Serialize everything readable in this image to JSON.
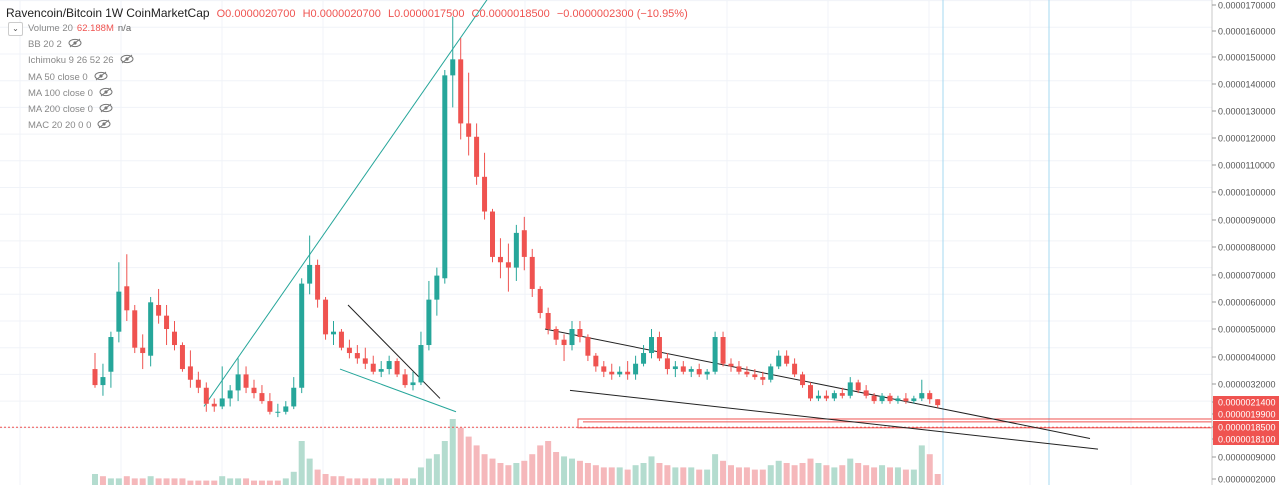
{
  "header": {
    "symbol": "Ravencoin/Bitcoin",
    "interval": "1W",
    "source": "CoinMarketCap",
    "open": "O0.0000020700",
    "high": "H0.0000020700",
    "low": "L0.0000017500",
    "close": "C0.0000018500",
    "change": "−0.0000002300 (−10.95%)"
  },
  "indicators": [
    {
      "label": "Volume 20",
      "value": "62.188M",
      "extra": "n/a",
      "icon": "collapse-chevron-icon"
    },
    {
      "label": "BB 20 2",
      "icon": "eye-hidden-icon"
    },
    {
      "label": "Ichimoku 9 26 52 26",
      "icon": "eye-hidden-icon"
    },
    {
      "label": "MA 50 close 0",
      "icon": "eye-hidden-icon"
    },
    {
      "label": "MA 100 close 0",
      "icon": "eye-hidden-icon"
    },
    {
      "label": "MA 200 close 0",
      "icon": "eye-hidden-icon"
    },
    {
      "label": "MAC 20 20 0 0",
      "icon": "eye-hidden-icon"
    }
  ],
  "colors": {
    "up": "#26a69a",
    "down": "#ef5350",
    "vol_up": "#b4dccf",
    "vol_down": "#f5b8bb",
    "trendline_up": "#26a69a",
    "trendline_down": "#222222",
    "vline": "#a6d8f0",
    "grid": "#f0f3f8",
    "hline": "#ef5350"
  },
  "chart_data": {
    "type": "candlestick",
    "title": "Ravencoin/Bitcoin · 1W · CoinMarketCap",
    "y_axis": {
      "ylim": [
        0.0,
        1.7e-05
      ],
      "tick_labels": [
        "0.0000170000",
        "0.0000160000",
        "0.0000150000",
        "0.0000140000",
        "0.0000130000",
        "0.0000120000",
        "0.0000110000",
        "0.0000100000",
        "0.0000090000",
        "0.0000080000",
        "0.0000070000",
        "0.0000060000",
        "0.0000050000",
        "0.0000040000",
        "0.0000032000",
        "0.0000021400",
        "0.0000019900",
        "0.0000018500",
        "0.0000018100",
        "0.0000009000",
        "0.0000002000"
      ],
      "highlighted_labels": [
        "0.0000021400",
        "0.0000019900",
        "0.0000018500",
        "0.0000018100"
      ]
    },
    "grid": true,
    "candles": [
      [
        3.2,
        3.8,
        2.5,
        2.6
      ],
      [
        2.6,
        3.4,
        2.2,
        2.9
      ],
      [
        3.1,
        4.6,
        2.5,
        4.4
      ],
      [
        4.6,
        7.2,
        4.2,
        6.1
      ],
      [
        6.3,
        7.5,
        5.0,
        5.4
      ],
      [
        5.4,
        5.6,
        3.8,
        4.0
      ],
      [
        4.0,
        4.5,
        3.2,
        3.8
      ],
      [
        3.7,
        5.9,
        3.3,
        5.7
      ],
      [
        5.6,
        6.2,
        4.9,
        5.2
      ],
      [
        5.2,
        5.6,
        4.1,
        4.7
      ],
      [
        4.6,
        5.0,
        3.9,
        4.1
      ],
      [
        4.1,
        4.2,
        3.1,
        3.2
      ],
      [
        3.3,
        3.9,
        2.5,
        2.8
      ],
      [
        2.8,
        3.1,
        2.3,
        2.5
      ],
      [
        2.5,
        2.7,
        1.6,
        1.9
      ],
      [
        1.9,
        2.1,
        1.6,
        1.8
      ],
      [
        1.8,
        3.3,
        1.7,
        2.1
      ],
      [
        2.1,
        2.6,
        1.8,
        2.4
      ],
      [
        2.4,
        3.6,
        2.0,
        3.0
      ],
      [
        3.0,
        3.3,
        2.3,
        2.5
      ],
      [
        2.5,
        2.8,
        2.1,
        2.3
      ],
      [
        2.3,
        2.6,
        1.9,
        2.0
      ],
      [
        2.0,
        2.3,
        1.5,
        1.6
      ],
      [
        1.6,
        1.9,
        1.4,
        1.6
      ],
      [
        1.6,
        2.0,
        1.5,
        1.8
      ],
      [
        1.8,
        2.9,
        1.7,
        2.5
      ],
      [
        2.5,
        6.6,
        2.3,
        6.4
      ],
      [
        6.4,
        8.2,
        6.0,
        7.1
      ],
      [
        7.1,
        7.3,
        5.5,
        5.8
      ],
      [
        5.8,
        5.9,
        4.3,
        4.5
      ],
      [
        4.5,
        5.0,
        4.1,
        4.6
      ],
      [
        4.6,
        4.7,
        3.9,
        4.0
      ],
      [
        4.0,
        4.3,
        3.6,
        3.8
      ],
      [
        3.8,
        4.1,
        3.4,
        3.6
      ],
      [
        3.6,
        4.0,
        3.2,
        3.4
      ],
      [
        3.4,
        3.7,
        3.0,
        3.1
      ],
      [
        3.1,
        3.5,
        2.9,
        3.2
      ],
      [
        3.2,
        3.7,
        3.0,
        3.5
      ],
      [
        3.5,
        3.6,
        2.9,
        3.0
      ],
      [
        3.0,
        3.2,
        2.5,
        2.6
      ],
      [
        2.6,
        3.1,
        2.4,
        2.7
      ],
      [
        2.7,
        4.6,
        2.6,
        4.1
      ],
      [
        4.1,
        6.5,
        3.9,
        5.8
      ],
      [
        5.8,
        7.0,
        5.2,
        6.7
      ],
      [
        6.6,
        14.4,
        6.4,
        14.2
      ],
      [
        14.2,
        16.4,
        13.0,
        14.8
      ],
      [
        14.8,
        15.6,
        11.8,
        12.4
      ],
      [
        12.4,
        14.3,
        11.2,
        11.9
      ],
      [
        11.9,
        12.4,
        10.1,
        10.4
      ],
      [
        10.4,
        11.3,
        8.8,
        9.1
      ],
      [
        9.1,
        9.2,
        7.2,
        7.4
      ],
      [
        7.4,
        8.1,
        6.6,
        7.2
      ],
      [
        7.2,
        7.9,
        6.1,
        7.0
      ],
      [
        7.0,
        8.6,
        6.5,
        8.3
      ],
      [
        8.4,
        8.9,
        6.9,
        7.4
      ],
      [
        7.4,
        7.7,
        5.9,
        6.2
      ],
      [
        6.2,
        6.3,
        5.1,
        5.3
      ],
      [
        5.3,
        5.5,
        4.5,
        4.7
      ],
      [
        4.7,
        4.8,
        4.1,
        4.3
      ],
      [
        4.3,
        4.5,
        3.5,
        4.1
      ],
      [
        4.1,
        5.0,
        3.9,
        4.7
      ],
      [
        4.7,
        5.0,
        4.2,
        4.4
      ],
      [
        4.4,
        4.5,
        3.5,
        3.7
      ],
      [
        3.7,
        3.8,
        3.1,
        3.3
      ],
      [
        3.3,
        3.5,
        2.9,
        3.1
      ],
      [
        3.1,
        3.4,
        2.8,
        3.0
      ],
      [
        3.0,
        3.3,
        2.9,
        3.1
      ],
      [
        3.1,
        3.5,
        2.8,
        3.0
      ],
      [
        3.0,
        3.7,
        2.8,
        3.4
      ],
      [
        3.4,
        4.1,
        3.3,
        3.8
      ],
      [
        3.8,
        4.7,
        3.6,
        4.4
      ],
      [
        4.4,
        4.6,
        3.5,
        3.6
      ],
      [
        3.6,
        3.8,
        3.0,
        3.2
      ],
      [
        3.2,
        3.5,
        2.9,
        3.3
      ],
      [
        3.3,
        3.5,
        3.0,
        3.1
      ],
      [
        3.1,
        3.3,
        2.9,
        3.2
      ],
      [
        3.2,
        3.4,
        2.9,
        3.0
      ],
      [
        3.0,
        3.2,
        2.8,
        3.1
      ],
      [
        3.1,
        4.6,
        3.0,
        4.4
      ],
      [
        4.4,
        4.6,
        3.3,
        3.4
      ],
      [
        3.4,
        3.6,
        3.1,
        3.3
      ],
      [
        3.3,
        3.5,
        3.0,
        3.1
      ],
      [
        3.1,
        3.3,
        2.9,
        3.0
      ],
      [
        3.0,
        3.2,
        2.8,
        2.9
      ],
      [
        2.9,
        3.1,
        2.6,
        2.8
      ],
      [
        2.8,
        3.4,
        2.7,
        3.3
      ],
      [
        3.3,
        3.9,
        3.2,
        3.7
      ],
      [
        3.7,
        3.9,
        3.3,
        3.4
      ],
      [
        3.4,
        3.6,
        2.9,
        3.0
      ],
      [
        3.0,
        3.1,
        2.5,
        2.6
      ],
      [
        2.6,
        2.7,
        2.0,
        2.1
      ],
      [
        2.1,
        2.4,
        2.0,
        2.2
      ],
      [
        2.2,
        2.4,
        2.0,
        2.1
      ],
      [
        2.1,
        2.4,
        2.0,
        2.3
      ],
      [
        2.3,
        2.5,
        2.1,
        2.2
      ],
      [
        2.2,
        2.9,
        2.1,
        2.7
      ],
      [
        2.7,
        2.8,
        2.3,
        2.4
      ],
      [
        2.4,
        2.6,
        2.1,
        2.2
      ],
      [
        2.2,
        2.3,
        1.9,
        2.0
      ],
      [
        2.0,
        2.3,
        1.9,
        2.2
      ],
      [
        2.2,
        2.3,
        1.9,
        2.0
      ],
      [
        2.0,
        2.2,
        1.9,
        2.1
      ],
      [
        2.1,
        2.3,
        1.9,
        2.0
      ],
      [
        2.0,
        2.2,
        1.9,
        2.1
      ],
      [
        2.1,
        2.8,
        2.0,
        2.3
      ],
      [
        2.3,
        2.4,
        1.9,
        2.07
      ],
      [
        2.07,
        2.07,
        1.75,
        1.85
      ]
    ],
    "volume": [
      [
        5,
        1
      ],
      [
        4,
        0
      ],
      [
        3,
        1
      ],
      [
        3,
        1
      ],
      [
        4,
        0
      ],
      [
        3,
        0
      ],
      [
        3,
        0
      ],
      [
        4,
        1
      ],
      [
        3,
        0
      ],
      [
        3,
        0
      ],
      [
        3,
        0
      ],
      [
        3,
        0
      ],
      [
        2,
        0
      ],
      [
        2,
        0
      ],
      [
        2,
        0
      ],
      [
        2,
        0
      ],
      [
        4,
        1
      ],
      [
        3,
        1
      ],
      [
        3,
        1
      ],
      [
        3,
        0
      ],
      [
        2,
        0
      ],
      [
        2,
        0
      ],
      [
        2,
        0
      ],
      [
        2,
        0
      ],
      [
        3,
        1
      ],
      [
        6,
        1
      ],
      [
        20,
        1
      ],
      [
        12,
        1
      ],
      [
        7,
        0
      ],
      [
        5,
        0
      ],
      [
        4,
        0
      ],
      [
        4,
        0
      ],
      [
        3,
        0
      ],
      [
        3,
        0
      ],
      [
        3,
        0
      ],
      [
        3,
        0
      ],
      [
        3,
        1
      ],
      [
        3,
        1
      ],
      [
        3,
        0
      ],
      [
        3,
        0
      ],
      [
        3,
        1
      ],
      [
        8,
        1
      ],
      [
        12,
        1
      ],
      [
        14,
        1
      ],
      [
        20,
        1
      ],
      [
        30,
        1
      ],
      [
        26,
        0
      ],
      [
        22,
        0
      ],
      [
        18,
        0
      ],
      [
        14,
        0
      ],
      [
        12,
        0
      ],
      [
        10,
        0
      ],
      [
        9,
        0
      ],
      [
        10,
        1
      ],
      [
        11,
        0
      ],
      [
        14,
        0
      ],
      [
        18,
        0
      ],
      [
        20,
        0
      ],
      [
        15,
        0
      ],
      [
        13,
        1
      ],
      [
        12,
        1
      ],
      [
        11,
        0
      ],
      [
        10,
        0
      ],
      [
        9,
        0
      ],
      [
        8,
        0
      ],
      [
        8,
        0
      ],
      [
        8,
        1
      ],
      [
        7,
        0
      ],
      [
        9,
        1
      ],
      [
        10,
        1
      ],
      [
        13,
        1
      ],
      [
        10,
        0
      ],
      [
        9,
        0
      ],
      [
        8,
        1
      ],
      [
        8,
        0
      ],
      [
        8,
        1
      ],
      [
        7,
        0
      ],
      [
        7,
        1
      ],
      [
        14,
        1
      ],
      [
        11,
        0
      ],
      [
        9,
        0
      ],
      [
        8,
        0
      ],
      [
        8,
        0
      ],
      [
        7,
        0
      ],
      [
        7,
        0
      ],
      [
        9,
        1
      ],
      [
        11,
        1
      ],
      [
        10,
        0
      ],
      [
        9,
        0
      ],
      [
        10,
        0
      ],
      [
        12,
        0
      ],
      [
        10,
        1
      ],
      [
        9,
        0
      ],
      [
        8,
        1
      ],
      [
        9,
        0
      ],
      [
        12,
        1
      ],
      [
        10,
        0
      ],
      [
        9,
        0
      ],
      [
        8,
        0
      ],
      [
        9,
        1
      ],
      [
        8,
        0
      ],
      [
        8,
        1
      ],
      [
        7,
        0
      ],
      [
        7,
        1
      ],
      [
        18,
        1
      ],
      [
        14,
        0
      ],
      [
        5,
        0
      ]
    ]
  }
}
